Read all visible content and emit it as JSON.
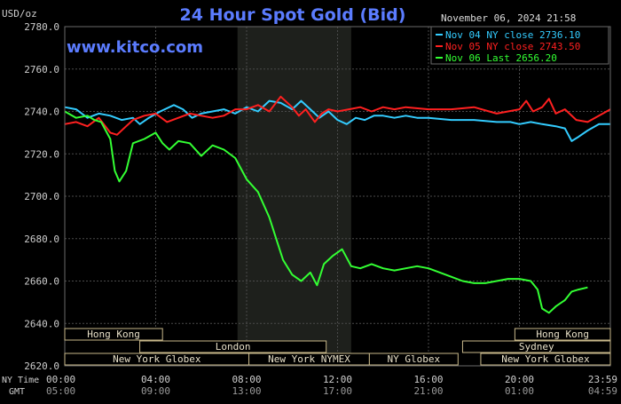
{
  "chart_data": {
    "type": "line",
    "title": "24 Hour Spot Gold (Bid)",
    "ylabel": "USD/oz",
    "watermark": "www.kitco.com",
    "date_stamp": "November 06, 2024 21:58",
    "ylim": [
      2620,
      2780
    ],
    "y_ticks": [
      2620,
      2640,
      2660,
      2680,
      2700,
      2720,
      2740,
      2760,
      2780
    ],
    "y_tick_labels": [
      "2620.0",
      "2640.0",
      "2660.0",
      "2680.0",
      "2700.0",
      "2720.0",
      "2740.0",
      "2760.0",
      "2780.0"
    ],
    "x_range_hours": [
      0,
      24
    ],
    "x_ticks_ny": [
      "00:00",
      "04:00",
      "08:00",
      "12:00",
      "16:00",
      "20:00",
      "23:59"
    ],
    "x_ticks_gmt": [
      "05:00",
      "09:00",
      "13:00",
      "17:00",
      "21:00",
      "01:00",
      "04:59"
    ],
    "x_tick_hours": [
      0,
      4,
      8,
      12,
      16,
      20,
      24
    ],
    "row_label_ny": "NY Time",
    "row_label_gmt": "GMT",
    "shaded_session": [
      7.6,
      12.6
    ],
    "legend_position": "top-right",
    "grid": true,
    "colors": {
      "background": "#000000",
      "plot": "#000000",
      "shade": "#1e201c",
      "grid": "#4a4a4a",
      "title": "#5b7cff",
      "watermark": "#5b7cff",
      "text": "#cfcfcf"
    },
    "series": [
      {
        "name": "Nov 04 NY close 2736.10",
        "color": "#33ccff",
        "points": [
          [
            0,
            2742
          ],
          [
            0.5,
            2741
          ],
          [
            1,
            2737
          ],
          [
            1.5,
            2739
          ],
          [
            2,
            2738
          ],
          [
            2.5,
            2736
          ],
          [
            3,
            2737
          ],
          [
            3.3,
            2734
          ],
          [
            3.7,
            2737
          ],
          [
            4.2,
            2740
          ],
          [
            4.8,
            2743
          ],
          [
            5.2,
            2741
          ],
          [
            5.6,
            2737
          ],
          [
            6,
            2739
          ],
          [
            6.5,
            2740
          ],
          [
            7,
            2741
          ],
          [
            7.5,
            2739
          ],
          [
            8,
            2742
          ],
          [
            8.5,
            2740
          ],
          [
            9,
            2745
          ],
          [
            9.5,
            2744
          ],
          [
            10,
            2741
          ],
          [
            10.4,
            2745
          ],
          [
            10.8,
            2741
          ],
          [
            11.2,
            2737
          ],
          [
            11.6,
            2740
          ],
          [
            12,
            2736
          ],
          [
            12.4,
            2734
          ],
          [
            12.8,
            2737
          ],
          [
            13.2,
            2736
          ],
          [
            13.6,
            2738
          ],
          [
            14,
            2738
          ],
          [
            14.5,
            2737
          ],
          [
            15,
            2738
          ],
          [
            15.5,
            2737
          ],
          [
            16,
            2737
          ],
          [
            17,
            2736
          ],
          [
            18,
            2736
          ],
          [
            19,
            2735
          ],
          [
            19.6,
            2735
          ],
          [
            20,
            2734
          ],
          [
            20.5,
            2735
          ],
          [
            21,
            2734
          ],
          [
            21.6,
            2733
          ],
          [
            22,
            2732
          ],
          [
            22.3,
            2726
          ],
          [
            22.6,
            2728
          ],
          [
            23,
            2731
          ],
          [
            23.5,
            2734
          ],
          [
            24,
            2734
          ]
        ]
      },
      {
        "name": "Nov 05 NY close 2743.50",
        "color": "#ff2020",
        "points": [
          [
            0,
            2734
          ],
          [
            0.5,
            2735
          ],
          [
            1,
            2733
          ],
          [
            1.5,
            2737
          ],
          [
            2,
            2730
          ],
          [
            2.3,
            2729
          ],
          [
            2.7,
            2733
          ],
          [
            3,
            2736
          ],
          [
            3.5,
            2738
          ],
          [
            4,
            2739
          ],
          [
            4.5,
            2735
          ],
          [
            5,
            2737
          ],
          [
            5.5,
            2739
          ],
          [
            6,
            2738
          ],
          [
            6.5,
            2737
          ],
          [
            7,
            2738
          ],
          [
            7.5,
            2741
          ],
          [
            8,
            2741
          ],
          [
            8.5,
            2743
          ],
          [
            9,
            2740
          ],
          [
            9.5,
            2747
          ],
          [
            10,
            2742
          ],
          [
            10.3,
            2738
          ],
          [
            10.6,
            2741
          ],
          [
            11,
            2735
          ],
          [
            11.3,
            2739
          ],
          [
            11.6,
            2741
          ],
          [
            12,
            2740
          ],
          [
            12.5,
            2741
          ],
          [
            13,
            2742
          ],
          [
            13.5,
            2740
          ],
          [
            14,
            2742
          ],
          [
            14.5,
            2741
          ],
          [
            15,
            2742
          ],
          [
            16,
            2741
          ],
          [
            17,
            2741
          ],
          [
            18,
            2742
          ],
          [
            19,
            2739
          ],
          [
            19.5,
            2740
          ],
          [
            20,
            2741
          ],
          [
            20.3,
            2745
          ],
          [
            20.6,
            2740
          ],
          [
            21,
            2742
          ],
          [
            21.3,
            2746
          ],
          [
            21.6,
            2739
          ],
          [
            22,
            2741
          ],
          [
            22.5,
            2736
          ],
          [
            23,
            2735
          ],
          [
            23.5,
            2738
          ],
          [
            24,
            2741
          ]
        ]
      },
      {
        "name": "Nov 06 Last 2656.20",
        "color": "#33ff33",
        "points": [
          [
            0,
            2740
          ],
          [
            0.5,
            2737
          ],
          [
            1,
            2738
          ],
          [
            1.3,
            2736
          ],
          [
            1.6,
            2735
          ],
          [
            2,
            2727
          ],
          [
            2.2,
            2712
          ],
          [
            2.4,
            2707
          ],
          [
            2.7,
            2712
          ],
          [
            3,
            2725
          ],
          [
            3.5,
            2727
          ],
          [
            4,
            2730
          ],
          [
            4.3,
            2725
          ],
          [
            4.6,
            2722
          ],
          [
            5,
            2726
          ],
          [
            5.5,
            2725
          ],
          [
            6,
            2719
          ],
          [
            6.5,
            2724
          ],
          [
            7,
            2722
          ],
          [
            7.5,
            2718
          ],
          [
            8,
            2708
          ],
          [
            8.5,
            2702
          ],
          [
            9,
            2690
          ],
          [
            9.3,
            2680
          ],
          [
            9.6,
            2670
          ],
          [
            10,
            2663
          ],
          [
            10.4,
            2660
          ],
          [
            10.8,
            2664
          ],
          [
            11.1,
            2658
          ],
          [
            11.4,
            2668
          ],
          [
            11.8,
            2672
          ],
          [
            12.2,
            2675
          ],
          [
            12.6,
            2667
          ],
          [
            13,
            2666
          ],
          [
            13.5,
            2668
          ],
          [
            14,
            2666
          ],
          [
            14.5,
            2665
          ],
          [
            15,
            2666
          ],
          [
            15.5,
            2667
          ],
          [
            16,
            2666
          ],
          [
            16.5,
            2664
          ],
          [
            17,
            2662
          ],
          [
            17.5,
            2660
          ],
          [
            18,
            2659
          ],
          [
            18.5,
            2659
          ],
          [
            19,
            2660
          ],
          [
            19.5,
            2661
          ],
          [
            20,
            2661
          ],
          [
            20.5,
            2660
          ],
          [
            20.8,
            2656
          ],
          [
            21,
            2647
          ],
          [
            21.3,
            2645
          ],
          [
            21.6,
            2648
          ],
          [
            22,
            2651
          ],
          [
            22.3,
            2655
          ],
          [
            22.6,
            2656
          ],
          [
            23,
            2657
          ]
        ]
      }
    ],
    "session_bars": [
      {
        "label": "Hong Kong",
        "segments": [
          [
            0,
            4.3
          ]
        ]
      },
      {
        "label": "Hong Kong",
        "segments": [
          [
            19.8,
            24
          ]
        ]
      },
      {
        "label": "London",
        "segments": [
          [
            3.3,
            11.5
          ]
        ]
      },
      {
        "label": "Sydney",
        "segments": [
          [
            17.5,
            24
          ]
        ]
      },
      {
        "label": "New York Globex",
        "segments": [
          [
            0,
            8.1
          ]
        ]
      },
      {
        "label": "New York NYMEX",
        "segments": [
          [
            8.1,
            13.4
          ]
        ]
      },
      {
        "label": "NY Globex",
        "segments": [
          [
            13.4,
            17.3
          ]
        ]
      },
      {
        "label": "New York Globex",
        "segments": [
          [
            18.3,
            24
          ]
        ]
      }
    ]
  }
}
